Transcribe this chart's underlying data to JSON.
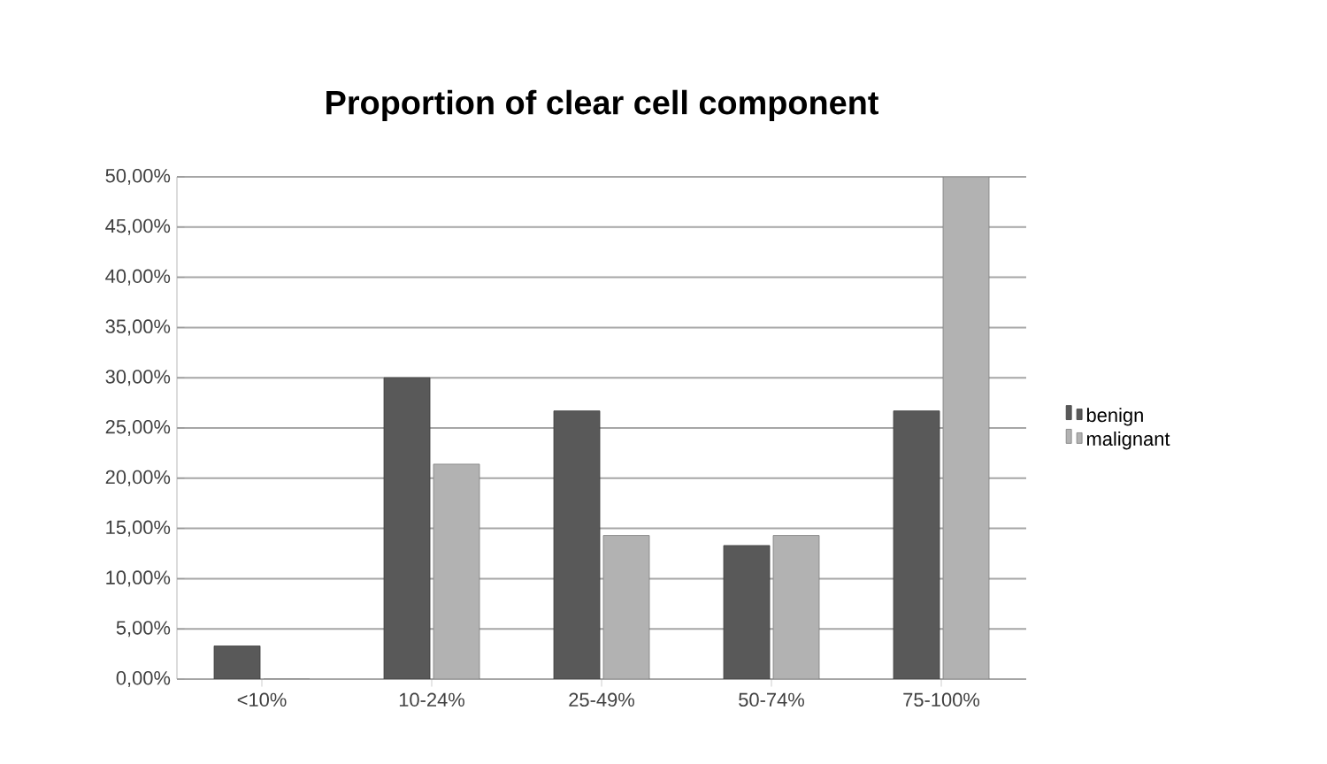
{
  "chart_data": {
    "type": "bar",
    "title": "Proportion of clear cell component",
    "categories": [
      "<10%",
      "10-24%",
      "25-49%",
      "50-74%",
      "75-100%"
    ],
    "series": [
      {
        "name": "benign",
        "color": "#595959",
        "values": [
          3.3,
          30,
          26.7,
          13.3,
          26.7
        ]
      },
      {
        "name": "malignant",
        "color": "#b2b2b2",
        "values": [
          0,
          21.4,
          14.3,
          14.3,
          50
        ]
      }
    ],
    "ylim": [
      0,
      50
    ],
    "yticks": [
      {
        "value": 0,
        "label": "0,00%"
      },
      {
        "value": 5,
        "label": "5,00%"
      },
      {
        "value": 10,
        "label": "10,00%"
      },
      {
        "value": 15,
        "label": "15,00%"
      },
      {
        "value": 20,
        "label": "20,00%"
      },
      {
        "value": 25,
        "label": "25,00%"
      },
      {
        "value": 30,
        "label": "30,00%"
      },
      {
        "value": 35,
        "label": "35,00%"
      },
      {
        "value": 40,
        "label": "40,00%"
      },
      {
        "value": 45,
        "label": "45,00%"
      },
      {
        "value": 50,
        "label": "50,00%"
      }
    ],
    "grid": "y",
    "legend": "right"
  }
}
